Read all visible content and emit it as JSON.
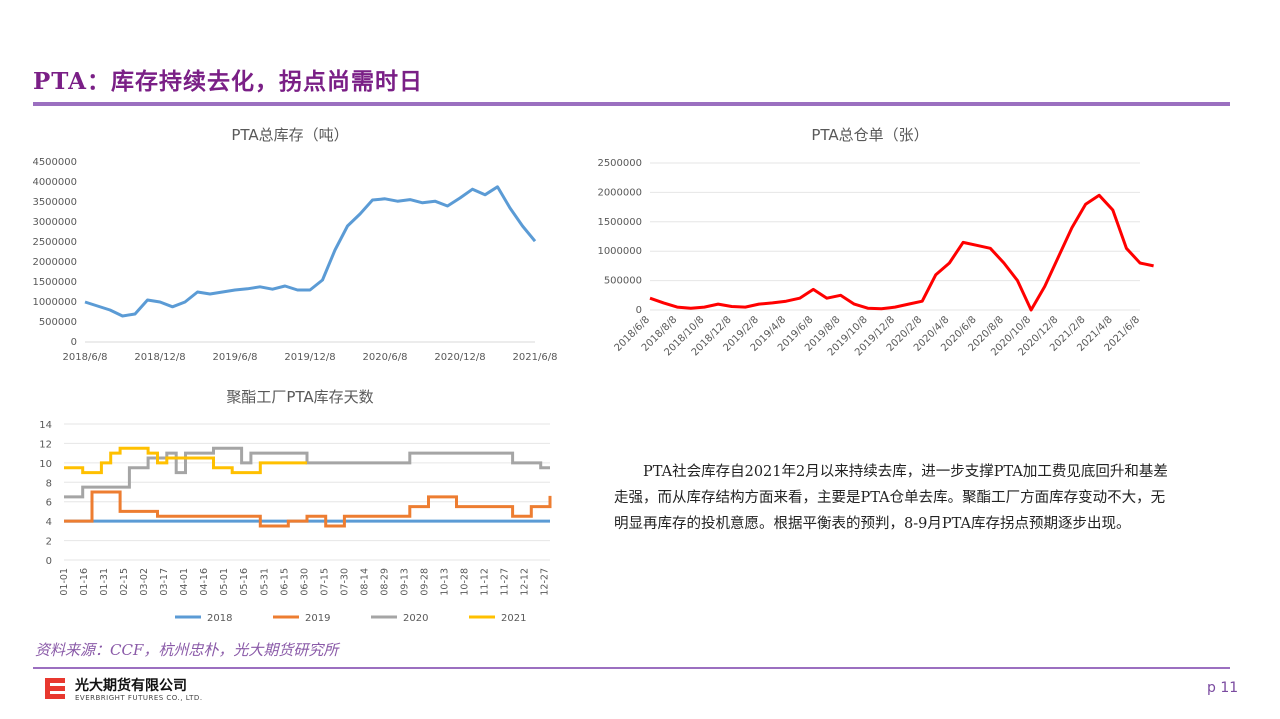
{
  "header": {
    "title": "PTA：库存持续去化，拐点尚需时日"
  },
  "footer": {
    "source": "资料来源：CCF，杭州忠朴，光大期货研究所",
    "company_cn": "光大期货有限公司",
    "company_en": "EVERBRIGHT FUTURES CO., LTD.",
    "page": "p 11"
  },
  "note": "PTA社会库存自2021年2月以来持续去库，进一步支撑PTA加工费见底回升和基差走强，而从库存结构方面来看，主要是PTA仓单去库。聚酯工厂方面库存变动不大，无明显再库存的投机意愿。根据平衡表的预判，8-9月PTA库存拐点预期逐步出现。",
  "colors": {
    "accent": "#7a1f86",
    "rule": "#9b6fc0",
    "s2018": "#5b9bd5",
    "s2019": "#ed7d31",
    "s2020": "#a5a5a5",
    "s2021": "#ffc000",
    "warrant": "#ff0000"
  },
  "chart_data": [
    {
      "type": "line",
      "title": "PTA总库存（吨）",
      "x_ticks": [
        "2018/6/8",
        "2018/12/8",
        "2019/6/8",
        "2019/12/8",
        "2020/6/8",
        "2020/12/8",
        "2021/6/8"
      ],
      "y_ticks": [
        "0",
        "500000",
        "1000000",
        "1500000",
        "2000000",
        "2500000",
        "3000000",
        "3500000",
        "4000000",
        "4500000"
      ],
      "ylim": [
        0,
        4500000
      ],
      "series": [
        {
          "color": "#5b9bd5",
          "x": [
            "2018/6/8",
            "2018/7/8",
            "2018/8/8",
            "2018/9/8",
            "2018/10/8",
            "2018/11/8",
            "2018/12/8",
            "2019/1/8",
            "2019/2/8",
            "2019/3/8",
            "2019/4/8",
            "2019/5/8",
            "2019/6/8",
            "2019/7/8",
            "2019/8/8",
            "2019/9/8",
            "2019/10/8",
            "2019/11/8",
            "2019/12/8",
            "2020/1/8",
            "2020/2/8",
            "2020/3/8",
            "2020/4/8",
            "2020/5/8",
            "2020/6/8",
            "2020/7/8",
            "2020/8/8",
            "2020/9/8",
            "2020/10/8",
            "2020/11/8",
            "2020/12/8",
            "2021/1/8",
            "2021/2/8",
            "2021/3/8",
            "2021/4/8",
            "2021/5/8",
            "2021/6/8"
          ],
          "values": [
            1000000,
            900000,
            800000,
            650000,
            700000,
            1050000,
            1000000,
            880000,
            1000000,
            1250000,
            1200000,
            1250000,
            1300000,
            1330000,
            1380000,
            1320000,
            1400000,
            1300000,
            1300000,
            1550000,
            2300000,
            2900000,
            3200000,
            3550000,
            3580000,
            3520000,
            3560000,
            3480000,
            3520000,
            3400000,
            3600000,
            3820000,
            3680000,
            3880000,
            3350000,
            2900000,
            2520000
          ]
        }
      ]
    },
    {
      "type": "line",
      "title": "PTA总仓单（张）",
      "x_ticks": [
        "2018/6/8",
        "2018/8/8",
        "2018/10/8",
        "2018/12/8",
        "2019/2/8",
        "2019/4/8",
        "2019/6/8",
        "2019/8/8",
        "2019/10/8",
        "2019/12/8",
        "2020/2/8",
        "2020/4/8",
        "2020/6/8",
        "2020/8/8",
        "2020/10/8",
        "2020/12/8",
        "2021/2/8",
        "2021/4/8",
        "2021/6/8"
      ],
      "y_ticks": [
        "0",
        "500000",
        "1000000",
        "1500000",
        "2000000",
        "2500000"
      ],
      "ylim": [
        0,
        2500000
      ],
      "series": [
        {
          "color": "#ff0000",
          "x": [
            "2018/6/8",
            "2018/7/8",
            "2018/8/8",
            "2018/9/8",
            "2018/10/8",
            "2018/11/8",
            "2018/12/8",
            "2019/1/8",
            "2019/2/8",
            "2019/3/8",
            "2019/4/8",
            "2019/5/8",
            "2019/6/8",
            "2019/7/8",
            "2019/8/8",
            "2019/9/8",
            "2019/10/8",
            "2019/11/8",
            "2019/12/8",
            "2020/1/8",
            "2020/2/8",
            "2020/3/8",
            "2020/4/8",
            "2020/5/8",
            "2020/6/8",
            "2020/7/8",
            "2020/8/8",
            "2020/9/8",
            "2020/10/8",
            "2020/11/8",
            "2020/12/8",
            "2021/1/8",
            "2021/2/8",
            "2021/3/8",
            "2021/4/8",
            "2021/5/8",
            "2021/6/8",
            "2021/7/8"
          ],
          "values": [
            200000,
            120000,
            50000,
            30000,
            50000,
            100000,
            60000,
            50000,
            100000,
            120000,
            150000,
            200000,
            350000,
            200000,
            250000,
            100000,
            30000,
            20000,
            50000,
            100000,
            150000,
            600000,
            800000,
            1150000,
            1100000,
            1050000,
            800000,
            500000,
            0,
            400000,
            900000,
            1400000,
            1800000,
            1950000,
            1700000,
            1050000,
            800000,
            750000
          ]
        }
      ]
    },
    {
      "type": "line",
      "title": "聚酯工厂PTA库存天数",
      "x_ticks": [
        "01-01",
        "01-16",
        "01-31",
        "02-15",
        "03-02",
        "03-17",
        "04-01",
        "04-16",
        "05-01",
        "05-16",
        "05-31",
        "06-15",
        "06-30",
        "07-15",
        "07-30",
        "08-14",
        "08-29",
        "09-13",
        "09-28",
        "10-13",
        "10-28",
        "11-12",
        "11-27",
        "12-12",
        "12-27"
      ],
      "y_ticks": [
        "0",
        "2",
        "4",
        "6",
        "8",
        "10",
        "12",
        "14"
      ],
      "ylim": [
        0,
        14
      ],
      "legend": "bottom",
      "series": [
        {
          "name": "2018",
          "color": "#5b9bd5",
          "x": [
            1,
            8,
            15,
            22,
            29,
            36,
            43,
            50,
            57,
            64,
            71,
            78,
            85,
            92,
            99,
            106,
            113,
            120,
            127,
            134,
            141,
            148,
            155,
            162,
            169,
            176,
            183,
            190,
            197,
            204,
            211,
            218,
            225,
            232,
            239,
            246,
            253,
            260,
            267,
            274,
            281,
            288,
            295,
            302,
            309,
            316,
            323,
            330,
            337,
            344,
            351,
            358,
            365
          ],
          "values": [
            4,
            4,
            4,
            4,
            4,
            4,
            4,
            4,
            4,
            4,
            4,
            4,
            4,
            4,
            4,
            4,
            4,
            4,
            4,
            4,
            4,
            4,
            4,
            4,
            4,
            4,
            4,
            4,
            4,
            4,
            4,
            4,
            4,
            4,
            4,
            4,
            4,
            4,
            4,
            4,
            4,
            4,
            4,
            4,
            4,
            4,
            4,
            4,
            4,
            4,
            4,
            4,
            4
          ]
        },
        {
          "name": "2019",
          "color": "#ed7d31",
          "x": [
            1,
            8,
            15,
            22,
            29,
            36,
            43,
            50,
            57,
            64,
            71,
            78,
            85,
            92,
            99,
            106,
            113,
            120,
            127,
            134,
            141,
            148,
            155,
            162,
            169,
            176,
            183,
            190,
            197,
            204,
            211,
            218,
            225,
            232,
            239,
            246,
            253,
            260,
            267,
            274,
            281,
            288,
            295,
            302,
            309,
            316,
            323,
            330,
            337,
            344,
            351,
            358,
            365
          ],
          "values": [
            4,
            4,
            4,
            7,
            7,
            7,
            5,
            5,
            5,
            5,
            4.5,
            4.5,
            4.5,
            4.5,
            4.5,
            4.5,
            4.5,
            4.5,
            4.5,
            4.5,
            4.5,
            3.5,
            3.5,
            3.5,
            4,
            4,
            4.5,
            4.5,
            3.5,
            3.5,
            4.5,
            4.5,
            4.5,
            4.5,
            4.5,
            4.5,
            4.5,
            5.5,
            5.5,
            6.5,
            6.5,
            6.5,
            5.5,
            5.5,
            5.5,
            5.5,
            5.5,
            5.5,
            4.5,
            4.5,
            5.5,
            5.5,
            6.6
          ]
        },
        {
          "name": "2020",
          "color": "#a5a5a5",
          "x": [
            1,
            8,
            15,
            22,
            29,
            36,
            43,
            50,
            57,
            64,
            71,
            78,
            85,
            92,
            99,
            106,
            113,
            120,
            127,
            134,
            141,
            148,
            155,
            162,
            169,
            176,
            183,
            190,
            197,
            204,
            211,
            218,
            225,
            232,
            239,
            246,
            253,
            260,
            267,
            274,
            281,
            288,
            295,
            302,
            309,
            316,
            323,
            330,
            337,
            344,
            351,
            358,
            365
          ],
          "values": [
            6.5,
            6.5,
            7.5,
            7.5,
            7.5,
            7.5,
            7.5,
            9.5,
            9.5,
            10.5,
            10.5,
            11,
            9,
            11,
            11,
            11,
            11.5,
            11.5,
            11.5,
            10,
            11,
            11,
            11,
            11,
            11,
            11,
            10,
            10,
            10,
            10,
            10,
            10,
            10,
            10,
            10,
            10,
            10,
            11,
            11,
            11,
            11,
            11,
            11,
            11,
            11,
            11,
            11,
            11,
            10,
            10,
            10,
            9.5,
            9.5
          ]
        },
        {
          "name": "2021",
          "color": "#ffc000",
          "x": [
            1,
            8,
            15,
            22,
            29,
            36,
            43,
            50,
            57,
            64,
            71,
            78,
            85,
            92,
            99,
            106,
            113,
            120,
            127,
            134,
            141,
            148,
            155,
            162,
            169,
            176,
            183
          ],
          "values": [
            9.5,
            9.5,
            9,
            9,
            10,
            11,
            11.5,
            11.5,
            11.5,
            11,
            10,
            10.5,
            10.5,
            10.5,
            10.5,
            10.5,
            9.5,
            9.5,
            9,
            9,
            9,
            10,
            10,
            10,
            10,
            10,
            10
          ]
        }
      ]
    }
  ]
}
